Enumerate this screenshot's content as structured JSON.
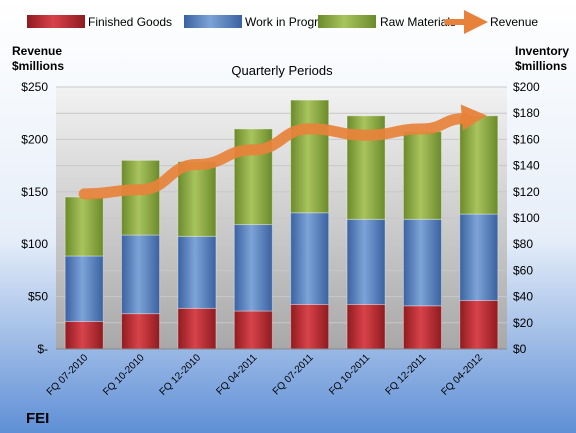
{
  "chart_data": {
    "type": "bar",
    "subtitle": "Quarterly Periods",
    "company": "FEI",
    "categories": [
      "FQ 07-2010",
      "FQ 10-2010",
      "FQ 12-2010",
      "FQ 04-2011",
      "FQ 07-2011",
      "FQ 10-2011",
      "FQ 12-2011",
      "FQ 04-2012"
    ],
    "left_axis": {
      "title_line1": "Revenue",
      "title_line2": "$millions",
      "ticks": [
        "$-",
        "$50",
        "$100",
        "$150",
        "$200",
        "$250"
      ],
      "range": [
        0,
        250
      ]
    },
    "right_axis": {
      "title_line1": "Inventory",
      "title_line2": "$millions",
      "ticks": [
        "$0",
        "$20",
        "$40",
        "$60",
        "$80",
        "$100",
        "$120",
        "$140",
        "$160",
        "$180",
        "$200"
      ],
      "range": [
        0,
        200
      ]
    },
    "series": [
      {
        "name": "Finished Goods",
        "axis": "right",
        "stack": true,
        "color": "#c0282f",
        "values": [
          21,
          27,
          31,
          29,
          34,
          34,
          33,
          37
        ]
      },
      {
        "name": "Work in Progress",
        "axis": "right",
        "stack": true,
        "color": "#4f7fc3",
        "values": [
          50,
          60,
          55,
          66,
          70,
          65,
          66,
          66
        ]
      },
      {
        "name": "Raw Materials",
        "axis": "right",
        "stack": true,
        "color": "#8aac3f",
        "values": [
          45,
          57,
          57,
          73,
          86,
          79,
          67,
          75
        ]
      },
      {
        "name": "Revenue",
        "axis": "left",
        "type": "line",
        "color": "#e8823a",
        "values": [
          148,
          152,
          176,
          190,
          210,
          204,
          210,
          220
        ]
      }
    ],
    "legend_position": "top",
    "grid": true
  }
}
